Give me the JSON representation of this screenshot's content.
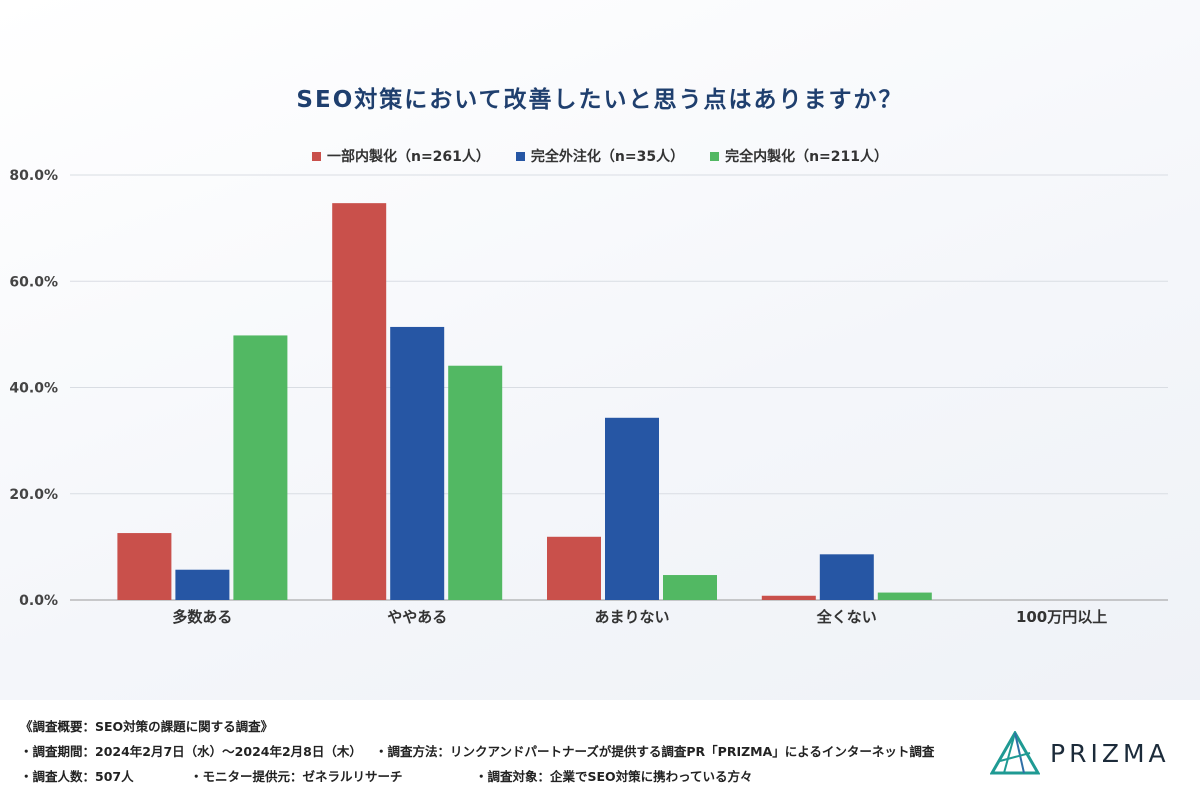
{
  "chart_data": {
    "type": "bar",
    "title": "SEO対策において改善したいと思う点はありますか？",
    "categories": [
      "多数ある",
      "ややある",
      "あまりない",
      "全くない",
      "100万円以上"
    ],
    "series": [
      {
        "name": "一部内製化（n=261人）",
        "color": "#c9504b",
        "values": [
          12.6,
          74.7,
          11.9,
          0.8,
          0
        ]
      },
      {
        "name": "完全外注化（n=35人）",
        "color": "#2656a4",
        "values": [
          5.7,
          51.4,
          34.3,
          8.6,
          0
        ]
      },
      {
        "name": "完全内製化（n=211人）",
        "color": "#52b863",
        "values": [
          49.8,
          44.1,
          4.7,
          1.4,
          0
        ]
      }
    ],
    "ylim": [
      0,
      80
    ],
    "yticks": [
      0,
      20,
      40,
      60,
      80
    ],
    "ytick_labels": [
      "0.0%",
      "20.0%",
      "40.0%",
      "60.0%",
      "80.0%"
    ],
    "grid": true,
    "legend_position": "top"
  },
  "footer": {
    "heading": "《調査概要：SEO対策の課題に関する調査》",
    "period": "・調査期間：2024年2月7日（水）〜2024年2月8日（木）",
    "method": "・調査方法：リンクアンドパートナーズが提供する調査PR「PRIZMA」によるインターネット調査",
    "count": "・調査人数：507人",
    "monitor": "・モニター提供元：ゼネラルリサーチ",
    "target": "・調査対象：企業でSEO対策に携わっている方々"
  },
  "brand": {
    "name": "PRIZMA",
    "logo_icon": "prism-logo-icon"
  }
}
